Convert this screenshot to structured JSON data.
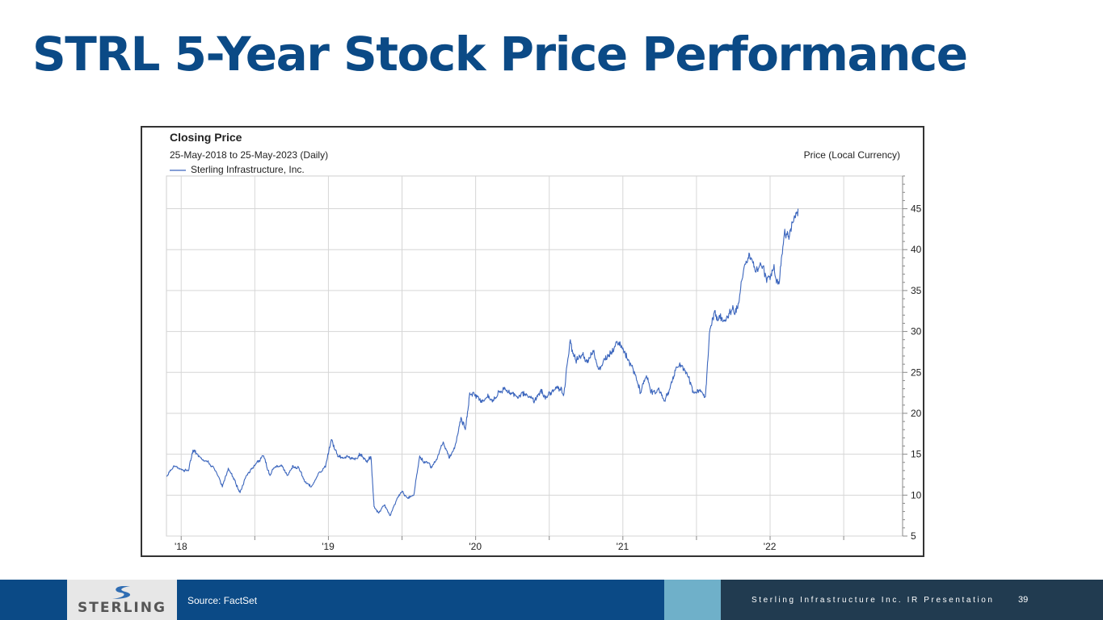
{
  "slide": {
    "title": "STRL 5-Year Stock Price Performance"
  },
  "colors": {
    "title": "#0b4a86",
    "footer_blue": "#0b4a86",
    "footer_light": "#6fb0c9",
    "footer_dark": "#213b50",
    "series_line": "#3c66bd",
    "logo_text": "#555555",
    "logo_mark": "#2f6db3"
  },
  "chart_data": {
    "type": "line",
    "title": "Closing Price",
    "subtitle": "25-May-2018 to 25-May-2023 (Daily)",
    "ylabel": "Price (Local Currency)",
    "legend": "Sterling Infrastructure, Inc.",
    "legend_position": "top-left",
    "ylim": [
      5,
      49
    ],
    "yticks": [
      5,
      10,
      15,
      20,
      25,
      30,
      35,
      40,
      45
    ],
    "xlim": [
      2018.4,
      2023.4
    ],
    "xticks": [
      {
        "label": "'18",
        "x": 2018.4
      },
      {
        "label": "'19",
        "x": 2019.4
      },
      {
        "label": "'20",
        "x": 2020.4
      },
      {
        "label": "'21",
        "x": 2021.4
      },
      {
        "label": "'22",
        "x": 2022.4
      }
    ],
    "grid": true,
    "series": [
      {
        "name": "Sterling Infrastructure, Inc.",
        "points": [
          [
            2018.4,
            12.3
          ],
          [
            2018.45,
            13.6
          ],
          [
            2018.5,
            13.2
          ],
          [
            2018.55,
            13.0
          ],
          [
            2018.58,
            15.5
          ],
          [
            2018.62,
            14.8
          ],
          [
            2018.67,
            14.2
          ],
          [
            2018.72,
            13.4
          ],
          [
            2018.78,
            11.0
          ],
          [
            2018.82,
            13.3
          ],
          [
            2018.86,
            12.0
          ],
          [
            2018.9,
            10.3
          ],
          [
            2018.94,
            12.3
          ],
          [
            2018.98,
            13.2
          ],
          [
            2019.02,
            14.2
          ],
          [
            2019.06,
            14.8
          ],
          [
            2019.1,
            12.6
          ],
          [
            2019.14,
            13.5
          ],
          [
            2019.18,
            13.7
          ],
          [
            2019.22,
            12.4
          ],
          [
            2019.26,
            13.6
          ],
          [
            2019.3,
            13.3
          ],
          [
            2019.34,
            11.6
          ],
          [
            2019.38,
            11.0
          ],
          [
            2019.43,
            12.6
          ],
          [
            2019.48,
            13.4
          ],
          [
            2019.52,
            16.8
          ],
          [
            2019.56,
            15.0
          ],
          [
            2019.6,
            14.5
          ],
          [
            2019.64,
            14.6
          ],
          [
            2019.68,
            14.3
          ],
          [
            2019.72,
            15.0
          ],
          [
            2019.76,
            14.2
          ],
          [
            2019.79,
            14.5
          ],
          [
            2019.81,
            8.6
          ],
          [
            2019.84,
            7.8
          ],
          [
            2019.88,
            8.8
          ],
          [
            2019.92,
            7.5
          ],
          [
            2019.96,
            9.3
          ],
          [
            2020.0,
            10.5
          ],
          [
            2020.04,
            9.6
          ],
          [
            2020.08,
            10.0
          ],
          [
            2020.12,
            14.8
          ],
          [
            2020.16,
            14.0
          ],
          [
            2020.2,
            13.5
          ],
          [
            2020.24,
            14.5
          ],
          [
            2020.28,
            16.5
          ],
          [
            2020.32,
            14.5
          ],
          [
            2020.36,
            16.0
          ],
          [
            2020.4,
            19.5
          ],
          [
            2020.43,
            18.0
          ],
          [
            2020.46,
            22.5
          ],
          [
            2020.5,
            22.3
          ],
          [
            2020.54,
            21.6
          ],
          [
            2020.58,
            22.0
          ],
          [
            2020.62,
            21.5
          ],
          [
            2020.66,
            22.6
          ],
          [
            2020.7,
            23.0
          ],
          [
            2020.74,
            22.5
          ],
          [
            2020.78,
            22.0
          ],
          [
            2020.82,
            22.6
          ],
          [
            2020.86,
            22.0
          ],
          [
            2020.9,
            21.5
          ],
          [
            2020.94,
            22.7
          ],
          [
            2020.98,
            22.0
          ],
          [
            2021.02,
            22.8
          ],
          [
            2021.06,
            23.0
          ],
          [
            2021.1,
            22.4
          ],
          [
            2021.14,
            28.7
          ],
          [
            2021.18,
            26.5
          ],
          [
            2021.22,
            27.0
          ],
          [
            2021.26,
            26.5
          ],
          [
            2021.3,
            27.5
          ],
          [
            2021.34,
            25.5
          ],
          [
            2021.38,
            26.5
          ],
          [
            2021.42,
            27.5
          ],
          [
            2021.46,
            28.8
          ],
          [
            2021.5,
            28.0
          ],
          [
            2021.54,
            26.5
          ],
          [
            2021.58,
            25.0
          ],
          [
            2021.62,
            22.5
          ],
          [
            2021.66,
            24.6
          ],
          [
            2021.7,
            22.3
          ],
          [
            2021.74,
            23.0
          ],
          [
            2021.78,
            21.5
          ],
          [
            2021.82,
            23.0
          ],
          [
            2021.86,
            25.5
          ],
          [
            2021.9,
            25.8
          ],
          [
            2021.94,
            24.5
          ],
          [
            2021.98,
            22.5
          ],
          [
            2022.02,
            22.8
          ],
          [
            2022.06,
            22.0
          ],
          [
            2022.09,
            30.0
          ],
          [
            2022.12,
            32.3
          ],
          [
            2022.16,
            31.6
          ],
          [
            2022.2,
            31.3
          ],
          [
            2022.24,
            32.6
          ],
          [
            2022.28,
            32.8
          ],
          [
            2022.32,
            37.5
          ],
          [
            2022.36,
            39.5
          ],
          [
            2022.4,
            37.3
          ],
          [
            2022.44,
            38.0
          ],
          [
            2022.48,
            36.5
          ],
          [
            2022.52,
            37.5
          ],
          [
            2022.56,
            35.8
          ],
          [
            2022.6,
            42.5
          ],
          [
            2022.63,
            41.5
          ],
          [
            2022.66,
            43.5
          ],
          [
            2022.69,
            45.0
          ]
        ]
      }
    ]
  },
  "footer": {
    "source": "Source: FactSet",
    "presenter": "Sterling Infrastructure Inc. IR Presentation",
    "page_number": "39",
    "logo_text": "STERLING"
  }
}
